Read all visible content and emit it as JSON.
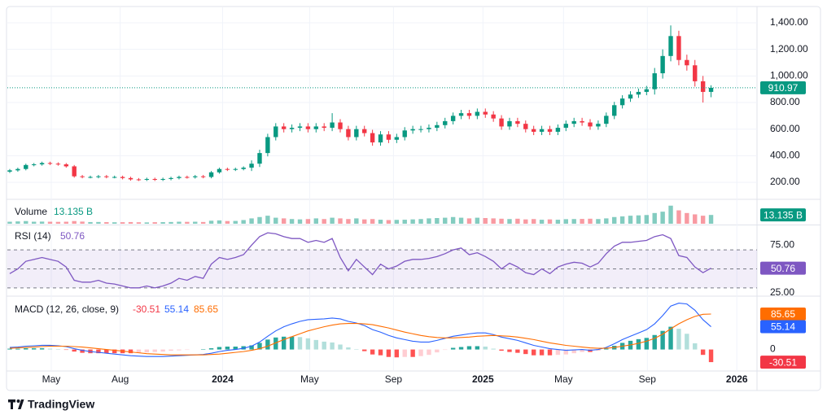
{
  "brand": "TradingView",
  "chart_data": [
    {
      "type": "candlestick",
      "up_color": "#089981",
      "down_color": "#f23645",
      "grid": true,
      "xlim": [
        -0.2,
        92.7
      ],
      "xticks": [
        {
          "value": 5.15,
          "label": "May"
        },
        {
          "value": 13.7,
          "label": "Aug"
        },
        {
          "value": 26.4,
          "label": "2024"
        },
        {
          "value": 37.2,
          "label": "May"
        },
        {
          "value": 47.6,
          "label": "Sep"
        },
        {
          "value": 58.7,
          "label": "2025"
        },
        {
          "value": 68.7,
          "label": "May"
        },
        {
          "value": 79.1,
          "label": "Sep"
        },
        {
          "value": 90.2,
          "label": "2026"
        }
      ],
      "ylim": [
        78,
        1510
      ],
      "yticks": [
        {
          "value": 200,
          "label": "200.00"
        },
        {
          "value": 400,
          "label": "400.00"
        },
        {
          "value": 600,
          "label": "600.00"
        },
        {
          "value": 800,
          "label": "800.00"
        },
        {
          "value": 1000,
          "label": "1,000.00"
        },
        {
          "value": 1200,
          "label": "1,200.00"
        },
        {
          "value": 1400,
          "label": "1,400.00"
        }
      ],
      "open": [
        280,
        290,
        300,
        330,
        335,
        345,
        340,
        335,
        320,
        245,
        240,
        240,
        245,
        240,
        240,
        232,
        222,
        220,
        225,
        220,
        225,
        232,
        240,
        238,
        245,
        240,
        275,
        300,
        295,
        300,
        310,
        340,
        420,
        540,
        620,
        600,
        610,
        620,
        600,
        620,
        610,
        650,
        600,
        540,
        600,
        570,
        500,
        560,
        520,
        540,
        590,
        600,
        600,
        610,
        630,
        660,
        700,
        720,
        700,
        730,
        710,
        680,
        620,
        660,
        640,
        600,
        580,
        600,
        580,
        610,
        640,
        660,
        650,
        620,
        640,
        700,
        780,
        830,
        860,
        880,
        900,
        1020,
        1150,
        1300,
        1120,
        1080,
        960,
        880
      ],
      "high": [
        300,
        310,
        340,
        345,
        355,
        355,
        350,
        345,
        330,
        255,
        250,
        255,
        255,
        250,
        250,
        242,
        232,
        235,
        235,
        235,
        242,
        250,
        250,
        255,
        255,
        285,
        310,
        310,
        310,
        320,
        365,
        445,
        565,
        645,
        645,
        635,
        645,
        645,
        645,
        645,
        720,
        675,
        625,
        625,
        625,
        595,
        585,
        585,
        565,
        615,
        625,
        625,
        635,
        655,
        685,
        725,
        745,
        745,
        755,
        755,
        735,
        705,
        685,
        685,
        665,
        625,
        625,
        625,
        635,
        665,
        685,
        685,
        675,
        665,
        725,
        805,
        855,
        885,
        905,
        925,
        1060,
        1200,
        1380,
        1340,
        1160,
        1120,
        1000,
        930
      ],
      "low": [
        270,
        280,
        290,
        320,
        325,
        330,
        325,
        310,
        235,
        230,
        230,
        230,
        230,
        230,
        222,
        212,
        210,
        210,
        210,
        210,
        215,
        222,
        228,
        228,
        230,
        230,
        265,
        285,
        285,
        290,
        285,
        315,
        395,
        515,
        575,
        575,
        585,
        575,
        575,
        585,
        585,
        575,
        515,
        515,
        545,
        475,
        475,
        495,
        495,
        515,
        565,
        575,
        575,
        585,
        605,
        635,
        675,
        675,
        675,
        685,
        655,
        595,
        595,
        615,
        575,
        555,
        555,
        555,
        555,
        585,
        615,
        625,
        595,
        595,
        615,
        675,
        755,
        805,
        835,
        855,
        860,
        980,
        1110,
        1080,
        1040,
        920,
        800,
        840
      ],
      "close": [
        290,
        300,
        330,
        335,
        345,
        340,
        335,
        320,
        245,
        240,
        240,
        245,
        240,
        240,
        232,
        222,
        220,
        225,
        220,
        225,
        232,
        240,
        238,
        245,
        240,
        275,
        300,
        295,
        300,
        310,
        340,
        420,
        540,
        620,
        600,
        610,
        620,
        600,
        620,
        610,
        650,
        600,
        540,
        600,
        570,
        500,
        560,
        520,
        540,
        590,
        600,
        600,
        610,
        630,
        660,
        700,
        720,
        700,
        730,
        710,
        680,
        620,
        660,
        640,
        600,
        580,
        600,
        580,
        610,
        640,
        660,
        650,
        620,
        640,
        700,
        780,
        830,
        860,
        880,
        900,
        1020,
        1150,
        1300,
        1120,
        1080,
        960,
        880,
        910.97
      ]
    },
    {
      "type": "bar",
      "title": "Volume",
      "last_value_label": "13.135 B",
      "ylim": [
        0,
        34
      ],
      "values": [
        3,
        3.5,
        4,
        3,
        3.2,
        3,
        2.8,
        3,
        4,
        3.2,
        2.5,
        2.6,
        2.4,
        2.2,
        2.3,
        2.5,
        2.2,
        2,
        2.3,
        2.4,
        2.6,
        3,
        2.8,
        3,
        2.6,
        4.5,
        5,
        4,
        4.2,
        5.5,
        8,
        10,
        12,
        9,
        8,
        7,
        6.5,
        7,
        8,
        7,
        9,
        8,
        7,
        8,
        6.5,
        7,
        6,
        5.5,
        5.8,
        6,
        6.5,
        7,
        8,
        8.5,
        9,
        10,
        9,
        8,
        9,
        8.5,
        8,
        7.5,
        7,
        7.5,
        6.5,
        7,
        6,
        6.5,
        6,
        6.8,
        7,
        7.2,
        7.5,
        7,
        8,
        10,
        11,
        12,
        12.5,
        13,
        16,
        18,
        27,
        20,
        16,
        14,
        12,
        13.135
      ]
    },
    {
      "type": "line",
      "title": "RSI (14)",
      "color": "#7e57c2",
      "ylim": [
        23,
        95
      ],
      "levels": [
        70,
        50,
        30
      ],
      "yticks": [
        {
          "value": 25,
          "label": "25.00"
        },
        {
          "value": 75,
          "label": "75.00"
        }
      ],
      "values": [
        45,
        50,
        58,
        60,
        62,
        60,
        58,
        52,
        38,
        36,
        36,
        38,
        35,
        34,
        32,
        30,
        30,
        32,
        30,
        32,
        35,
        40,
        38,
        42,
        40,
        55,
        62,
        60,
        62,
        65,
        75,
        84,
        88,
        87,
        84,
        82,
        82,
        78,
        80,
        78,
        82,
        62,
        48,
        60,
        52,
        44,
        55,
        50,
        53,
        58,
        60,
        60,
        61,
        63,
        66,
        70,
        72,
        65,
        67,
        63,
        58,
        50,
        56,
        52,
        46,
        44,
        50,
        45,
        52,
        55,
        57,
        56,
        52,
        56,
        66,
        74,
        78,
        78,
        79,
        80,
        84,
        86,
        82,
        64,
        62,
        52,
        46,
        50.76
      ]
    },
    {
      "type": "macd",
      "title": "MACD (12, 26, close, 9)",
      "ylim": [
        -50,
        125
      ],
      "yticks": [
        0
      ],
      "histogram": [
        2,
        2,
        3,
        3,
        3,
        2,
        1,
        -1,
        -5,
        -8,
        -9,
        -9,
        -9,
        -9,
        -9,
        -9,
        -8,
        -7,
        -6,
        -5,
        -3,
        -2,
        -1,
        0,
        1,
        3,
        6,
        7,
        7,
        8,
        10,
        16,
        24,
        29,
        31,
        31,
        30,
        27,
        23,
        19,
        17,
        12,
        5,
        1,
        -4,
        -12,
        -14,
        -18,
        -19,
        -18,
        -18,
        -16,
        -13,
        -7,
        -1,
        4,
        6,
        8,
        8,
        7,
        2,
        -3,
        -6,
        -8,
        -11,
        -14,
        -14,
        -14,
        -13,
        -12,
        -9,
        -6,
        -6,
        -3,
        2,
        9,
        16,
        21,
        25,
        28,
        35,
        45,
        55,
        50,
        38,
        15,
        -13,
        -30.51
      ],
      "series": [
        {
          "color": "#2962ff",
          "values": [
            5,
            6,
            8,
            9,
            10,
            10,
            9,
            7,
            2,
            -2,
            -5,
            -7,
            -9,
            -11,
            -13,
            -15,
            -16,
            -17,
            -17,
            -17,
            -16,
            -15,
            -14,
            -13,
            -12,
            -9,
            -5,
            -2,
            0,
            3,
            8,
            18,
            32,
            45,
            55,
            62,
            68,
            72,
            73,
            74,
            76,
            74,
            68,
            64,
            58,
            48,
            42,
            34,
            28,
            24,
            20,
            18,
            18,
            22,
            27,
            32,
            35,
            38,
            40,
            40,
            36,
            30,
            26,
            22,
            16,
            10,
            6,
            2,
            0,
            -2,
            -1,
            0,
            -2,
            0,
            5,
            14,
            24,
            32,
            40,
            48,
            62,
            82,
            105,
            112,
            110,
            95,
            72,
            55.14
          ]
        },
        {
          "color": "#ff6d00",
          "values": [
            3,
            4,
            5,
            6,
            7,
            8,
            8,
            8,
            7,
            6,
            4,
            2,
            0,
            -2,
            -4,
            -6,
            -8,
            -10,
            -11,
            -12,
            -13,
            -13,
            -13,
            -13,
            -13,
            -12,
            -11,
            -9,
            -7,
            -5,
            -2,
            2,
            8,
            16,
            24,
            31,
            38,
            45,
            50,
            55,
            59,
            62,
            63,
            63,
            62,
            60,
            56,
            52,
            47,
            42,
            38,
            34,
            31,
            29,
            28,
            28,
            29,
            30,
            32,
            33,
            34,
            33,
            32,
            30,
            27,
            24,
            20,
            16,
            13,
            10,
            8,
            6,
            4,
            3,
            3,
            5,
            8,
            11,
            15,
            20,
            27,
            37,
            50,
            62,
            72,
            80,
            85,
            85.65
          ]
        }
      ]
    }
  ]
}
